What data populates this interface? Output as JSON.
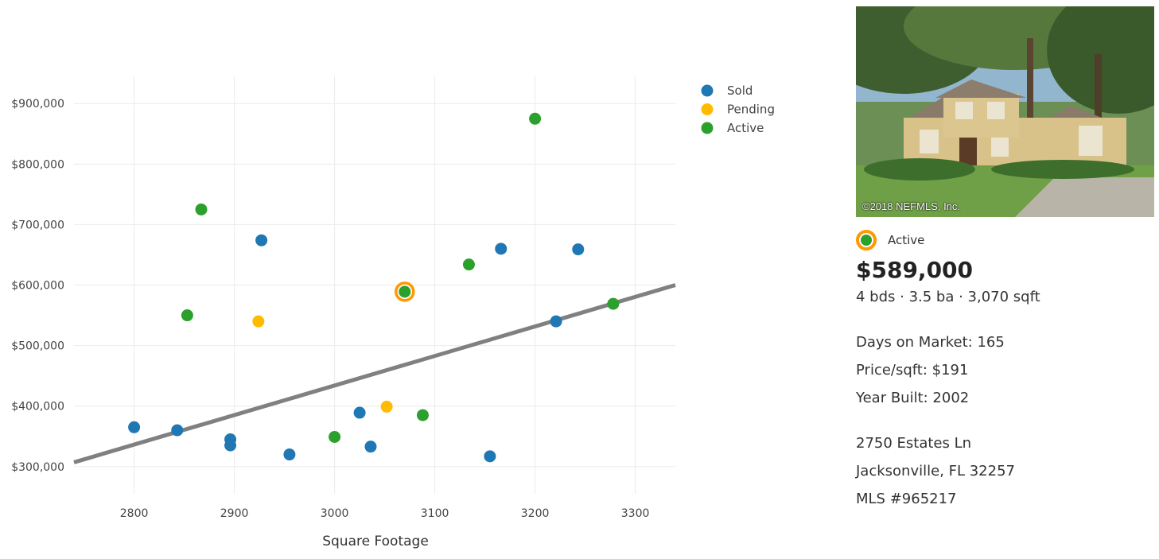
{
  "chart_data": {
    "type": "scatter",
    "title": "",
    "xlabel": "Square Footage",
    "ylabel": "",
    "xlim": [
      2740,
      3340
    ],
    "ylim": [
      255000,
      945000
    ],
    "x_ticks": [
      2800,
      2900,
      3000,
      3100,
      3200,
      3300
    ],
    "x_tick_labels": [
      "2800",
      "2900",
      "3000",
      "3100",
      "3200",
      "3300"
    ],
    "y_ticks": [
      300000,
      400000,
      500000,
      600000,
      700000,
      800000,
      900000
    ],
    "y_tick_labels": [
      "$300,000",
      "$400,000",
      "$500,000",
      "$600,000",
      "$700,000",
      "$800,000",
      "$900,000"
    ],
    "grid": true,
    "legend_position": "top-right",
    "series": [
      {
        "name": "Sold",
        "color": "#1f77b4",
        "points": [
          {
            "x": 2800,
            "y": 365000
          },
          {
            "x": 2843,
            "y": 360000
          },
          {
            "x": 2896,
            "y": 345000
          },
          {
            "x": 2896,
            "y": 335000
          },
          {
            "x": 2927,
            "y": 674000
          },
          {
            "x": 2955,
            "y": 320000
          },
          {
            "x": 3025,
            "y": 389000
          },
          {
            "x": 3036,
            "y": 333000
          },
          {
            "x": 3155,
            "y": 317000
          },
          {
            "x": 3166,
            "y": 660000
          },
          {
            "x": 3221,
            "y": 540000
          },
          {
            "x": 3243,
            "y": 659000
          }
        ]
      },
      {
        "name": "Pending",
        "color": "#ffbb00",
        "points": [
          {
            "x": 2924,
            "y": 540000
          },
          {
            "x": 3052,
            "y": 399000
          }
        ]
      },
      {
        "name": "Active",
        "color": "#2ca02c",
        "points": [
          {
            "x": 2853,
            "y": 550000
          },
          {
            "x": 2867,
            "y": 725000
          },
          {
            "x": 3000,
            "y": 349000
          },
          {
            "x": 3070,
            "y": 589000
          },
          {
            "x": 3088,
            "y": 385000
          },
          {
            "x": 3134,
            "y": 634000
          },
          {
            "x": 3200,
            "y": 875000
          },
          {
            "x": 3278,
            "y": 569000
          }
        ]
      }
    ],
    "highlight": {
      "x": 3070,
      "y": 589000,
      "ring_color": "#ff9900"
    },
    "trendline": {
      "color": "#808080",
      "start": {
        "x": 2740,
        "y": 307000
      },
      "end": {
        "x": 3340,
        "y": 600000
      }
    }
  },
  "listing": {
    "photo_credit": "©2018 NEFMLS, Inc.",
    "status": "Active",
    "price": "$589,000",
    "specs": "4 bds · 3.5 ba · 3,070 sqft",
    "days_on_market": "Days on Market: 165",
    "price_per_sqft": "Price/sqft: $191",
    "year_built": "Year Built: 2002",
    "street": "2750 Estates Ln",
    "city_state_zip": "Jacksonville, FL 32257",
    "mls": "MLS #965217"
  }
}
